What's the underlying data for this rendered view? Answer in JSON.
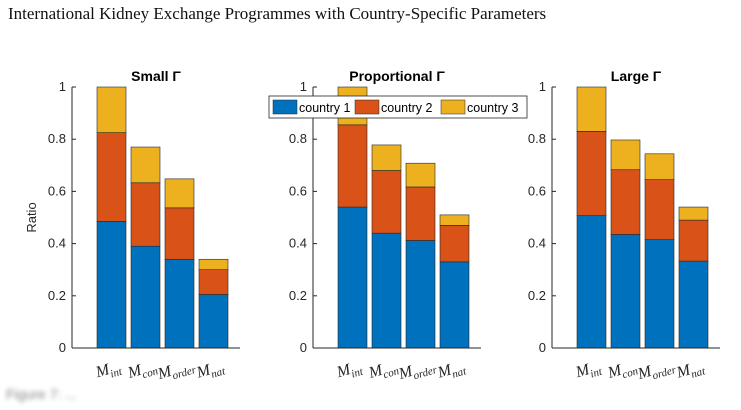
{
  "header": {
    "title": "International Kidney Exchange Programmes with Country-Specific Parameters"
  },
  "footer": {
    "text": "Figure 7: ..."
  },
  "colors": {
    "country_1": "#0072BD",
    "country_2": "#D95319",
    "country_3": "#EDB120"
  },
  "chart_data": [
    {
      "type": "bar",
      "stacked": true,
      "title": "Small Γ",
      "ylabel": "Ratio",
      "ylim": [
        0,
        1
      ],
      "yticks": [
        "0",
        "0.2",
        "0.4",
        "0.6",
        "0.8",
        "1"
      ],
      "categories": [
        {
          "base": "M",
          "sub": "int"
        },
        {
          "base": "M",
          "sub": "con"
        },
        {
          "base": "M",
          "sub": "order"
        },
        {
          "base": "M",
          "sub": "nat"
        }
      ],
      "series": [
        {
          "name": "country 1",
          "values": [
            0.485,
            0.39,
            0.34,
            0.205
          ]
        },
        {
          "name": "country 2",
          "values": [
            0.34,
            0.243,
            0.197,
            0.095
          ]
        },
        {
          "name": "country 3",
          "values": [
            0.175,
            0.137,
            0.111,
            0.04
          ]
        }
      ]
    },
    {
      "type": "bar",
      "stacked": true,
      "title": "Proportional Γ",
      "ylabel": "",
      "ylim": [
        0,
        1
      ],
      "yticks": [
        "0",
        "0.2",
        "0.4",
        "0.6",
        "0.8",
        "1"
      ],
      "categories": [
        {
          "base": "M",
          "sub": "int"
        },
        {
          "base": "M",
          "sub": "con"
        },
        {
          "base": "M",
          "sub": "order"
        },
        {
          "base": "M",
          "sub": "nat"
        }
      ],
      "series": [
        {
          "name": "country 1",
          "values": [
            0.54,
            0.44,
            0.412,
            0.33
          ]
        },
        {
          "name": "country 2",
          "values": [
            0.315,
            0.24,
            0.205,
            0.14
          ]
        },
        {
          "name": "country 3",
          "values": [
            0.145,
            0.098,
            0.091,
            0.04
          ]
        }
      ],
      "legend": {
        "placement": "top",
        "entries": [
          "country 1",
          "country 2",
          "country 3"
        ]
      }
    },
    {
      "type": "bar",
      "stacked": true,
      "title": "Large Γ",
      "ylabel": "",
      "ylim": [
        0,
        1
      ],
      "yticks": [
        "0",
        "0.2",
        "0.4",
        "0.6",
        "0.8",
        "1"
      ],
      "categories": [
        {
          "base": "M",
          "sub": "int"
        },
        {
          "base": "M",
          "sub": "con"
        },
        {
          "base": "M",
          "sub": "order"
        },
        {
          "base": "M",
          "sub": "nat"
        }
      ],
      "series": [
        {
          "name": "country 1",
          "values": [
            0.507,
            0.435,
            0.415,
            0.333
          ]
        },
        {
          "name": "country 2",
          "values": [
            0.323,
            0.248,
            0.23,
            0.157
          ]
        },
        {
          "name": "country 3",
          "values": [
            0.17,
            0.114,
            0.099,
            0.05
          ]
        }
      ]
    }
  ]
}
